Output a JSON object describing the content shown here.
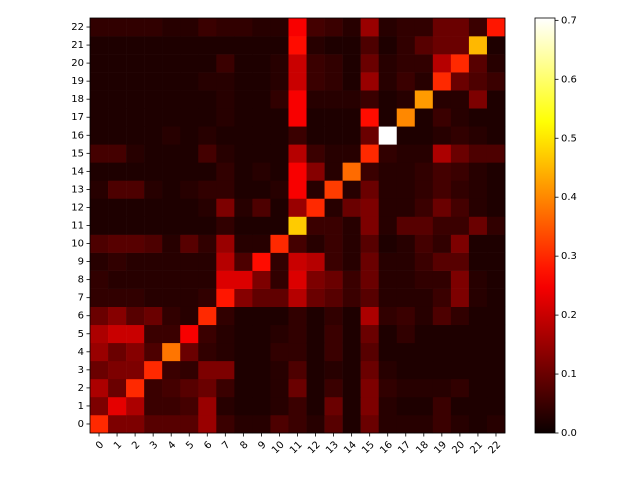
{
  "chart_data": {
    "type": "heatmap",
    "colormap": "hot",
    "x": [
      "0",
      "1",
      "2",
      "3",
      "4",
      "5",
      "6",
      "7",
      "8",
      "9",
      "10",
      "11",
      "12",
      "13",
      "14",
      "15",
      "16",
      "17",
      "18",
      "19",
      "20",
      "21",
      "22"
    ],
    "y": [
      "0",
      "1",
      "2",
      "3",
      "4",
      "5",
      "6",
      "7",
      "8",
      "9",
      "10",
      "11",
      "12",
      "13",
      "14",
      "15",
      "16",
      "17",
      "18",
      "19",
      "20",
      "21",
      "22"
    ],
    "z": [
      [
        0.3,
        0.12,
        0.12,
        0.08,
        0.08,
        0.08,
        0.15,
        0.05,
        0.03,
        0.03,
        0.07,
        0.05,
        0.03,
        0.08,
        0.02,
        0.1,
        0.03,
        0.03,
        0.03,
        0.05,
        0.03,
        0.02,
        0.03
      ],
      [
        0.12,
        0.23,
        0.17,
        0.05,
        0.05,
        0.06,
        0.15,
        0.03,
        0.02,
        0.02,
        0.03,
        0.05,
        0.02,
        0.1,
        0.02,
        0.12,
        0.03,
        0.02,
        0.02,
        0.05,
        0.02,
        0.02,
        0.02
      ],
      [
        0.17,
        0.1,
        0.3,
        0.05,
        0.06,
        0.08,
        0.1,
        0.05,
        0.02,
        0.02,
        0.03,
        0.1,
        0.02,
        0.05,
        0.02,
        0.12,
        0.04,
        0.03,
        0.03,
        0.03,
        0.04,
        0.02,
        0.02
      ],
      [
        0.1,
        0.12,
        0.12,
        0.3,
        0.05,
        0.04,
        0.12,
        0.12,
        0.02,
        0.02,
        0.03,
        0.07,
        0.02,
        0.03,
        0.02,
        0.1,
        0.03,
        0.02,
        0.02,
        0.02,
        0.02,
        0.02,
        0.02
      ],
      [
        0.15,
        0.1,
        0.13,
        0.07,
        0.38,
        0.1,
        0.04,
        0.03,
        0.02,
        0.02,
        0.04,
        0.04,
        0.02,
        0.05,
        0.02,
        0.08,
        0.02,
        0.02,
        0.02,
        0.02,
        0.02,
        0.02,
        0.02
      ],
      [
        0.17,
        0.2,
        0.2,
        0.05,
        0.05,
        0.25,
        0.05,
        0.03,
        0.02,
        0.02,
        0.03,
        0.04,
        0.02,
        0.05,
        0.02,
        0.1,
        0.02,
        0.04,
        0.02,
        0.02,
        0.02,
        0.02,
        0.02
      ],
      [
        0.1,
        0.13,
        0.08,
        0.1,
        0.04,
        0.03,
        0.3,
        0.04,
        0.02,
        0.02,
        0.02,
        0.04,
        0.02,
        0.04,
        0.02,
        0.17,
        0.04,
        0.05,
        0.03,
        0.07,
        0.04,
        0.02,
        0.02
      ],
      [
        0.04,
        0.04,
        0.04,
        0.03,
        0.03,
        0.03,
        0.04,
        0.28,
        0.13,
        0.09,
        0.09,
        0.18,
        0.1,
        0.08,
        0.05,
        0.08,
        0.03,
        0.03,
        0.03,
        0.05,
        0.12,
        0.03,
        0.02
      ],
      [
        0.04,
        0.03,
        0.03,
        0.03,
        0.03,
        0.03,
        0.03,
        0.22,
        0.22,
        0.12,
        0.04,
        0.22,
        0.12,
        0.1,
        0.05,
        0.1,
        0.03,
        0.03,
        0.04,
        0.04,
        0.12,
        0.03,
        0.02
      ],
      [
        0.03,
        0.04,
        0.03,
        0.03,
        0.03,
        0.03,
        0.03,
        0.18,
        0.07,
        0.27,
        0.04,
        0.2,
        0.18,
        0.05,
        0.03,
        0.1,
        0.03,
        0.03,
        0.05,
        0.08,
        0.08,
        0.02,
        0.02
      ],
      [
        0.07,
        0.08,
        0.08,
        0.07,
        0.03,
        0.08,
        0.04,
        0.15,
        0.03,
        0.03,
        0.3,
        0.06,
        0.03,
        0.05,
        0.03,
        0.08,
        0.02,
        0.03,
        0.06,
        0.04,
        0.12,
        0.02,
        0.02
      ],
      [
        0.02,
        0.02,
        0.02,
        0.02,
        0.02,
        0.02,
        0.02,
        0.04,
        0.02,
        0.02,
        0.02,
        0.47,
        0.05,
        0.05,
        0.03,
        0.12,
        0.03,
        0.08,
        0.08,
        0.05,
        0.05,
        0.1,
        0.04
      ],
      [
        0.02,
        0.02,
        0.02,
        0.02,
        0.02,
        0.02,
        0.03,
        0.12,
        0.03,
        0.07,
        0.02,
        0.15,
        0.3,
        0.03,
        0.1,
        0.12,
        0.03,
        0.03,
        0.05,
        0.1,
        0.06,
        0.03,
        0.02
      ],
      [
        0.03,
        0.07,
        0.07,
        0.03,
        0.02,
        0.03,
        0.04,
        0.04,
        0.02,
        0.02,
        0.03,
        0.25,
        0.03,
        0.32,
        0.03,
        0.1,
        0.03,
        0.03,
        0.04,
        0.06,
        0.04,
        0.03,
        0.02
      ],
      [
        0.02,
        0.02,
        0.02,
        0.02,
        0.02,
        0.02,
        0.02,
        0.04,
        0.02,
        0.03,
        0.02,
        0.25,
        0.13,
        0.03,
        0.37,
        0.05,
        0.03,
        0.03,
        0.04,
        0.06,
        0.05,
        0.03,
        0.02
      ],
      [
        0.06,
        0.06,
        0.03,
        0.02,
        0.02,
        0.02,
        0.06,
        0.03,
        0.02,
        0.02,
        0.02,
        0.18,
        0.05,
        0.03,
        0.03,
        0.3,
        0.04,
        0.03,
        0.03,
        0.17,
        0.1,
        0.07,
        0.07
      ],
      [
        0.02,
        0.02,
        0.02,
        0.02,
        0.03,
        0.02,
        0.03,
        0.02,
        0.02,
        0.02,
        0.02,
        0.05,
        0.02,
        0.02,
        0.02,
        0.1,
        0.704,
        0.02,
        0.02,
        0.03,
        0.04,
        0.03,
        0.02
      ],
      [
        0.02,
        0.02,
        0.02,
        0.02,
        0.02,
        0.02,
        0.02,
        0.03,
        0.02,
        0.02,
        0.02,
        0.25,
        0.02,
        0.02,
        0.02,
        0.27,
        0.02,
        0.4,
        0.02,
        0.05,
        0.03,
        0.02,
        0.02
      ],
      [
        0.02,
        0.02,
        0.02,
        0.02,
        0.02,
        0.02,
        0.02,
        0.03,
        0.02,
        0.02,
        0.04,
        0.25,
        0.03,
        0.03,
        0.03,
        0.05,
        0.02,
        0.03,
        0.42,
        0.03,
        0.03,
        0.12,
        0.02
      ],
      [
        0.02,
        0.02,
        0.02,
        0.02,
        0.02,
        0.02,
        0.03,
        0.03,
        0.02,
        0.02,
        0.03,
        0.2,
        0.05,
        0.04,
        0.02,
        0.15,
        0.03,
        0.05,
        0.03,
        0.3,
        0.1,
        0.07,
        0.05
      ],
      [
        0.02,
        0.02,
        0.02,
        0.02,
        0.02,
        0.02,
        0.02,
        0.05,
        0.02,
        0.02,
        0.03,
        0.2,
        0.05,
        0.04,
        0.02,
        0.1,
        0.03,
        0.04,
        0.04,
        0.18,
        0.3,
        0.08,
        0.03
      ],
      [
        0.02,
        0.02,
        0.02,
        0.02,
        0.02,
        0.02,
        0.02,
        0.02,
        0.02,
        0.02,
        0.02,
        0.27,
        0.03,
        0.02,
        0.02,
        0.07,
        0.02,
        0.04,
        0.08,
        0.1,
        0.1,
        0.45,
        0.02
      ],
      [
        0.04,
        0.04,
        0.04,
        0.04,
        0.03,
        0.03,
        0.05,
        0.04,
        0.04,
        0.03,
        0.03,
        0.25,
        0.06,
        0.05,
        0.03,
        0.15,
        0.03,
        0.04,
        0.04,
        0.1,
        0.1,
        0.05,
        0.28
      ]
    ],
    "clim": [
      0,
      0.704
    ],
    "cticks": [
      {
        "value": 0,
        "label": "0.0"
      },
      {
        "value": 0.1,
        "label": "0.1"
      },
      {
        "value": 0.2,
        "label": "0.2"
      },
      {
        "value": 0.3,
        "label": "0.3"
      },
      {
        "value": 0.4,
        "label": "0.4"
      },
      {
        "value": 0.5,
        "label": "0.5"
      },
      {
        "value": 0.6,
        "label": "0.6"
      },
      {
        "value": 0.7,
        "label": "0.7"
      }
    ]
  }
}
